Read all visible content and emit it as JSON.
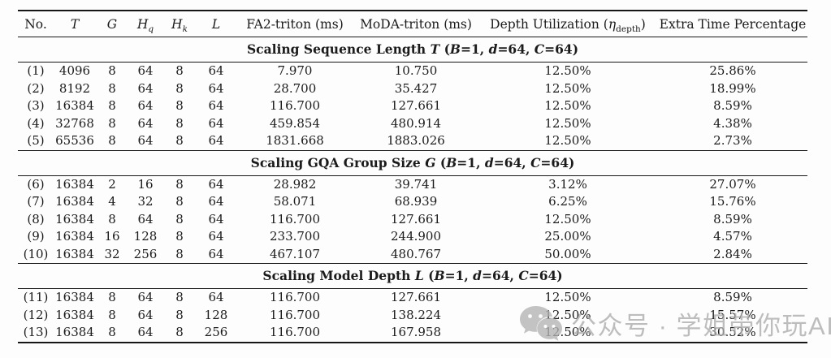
{
  "table": {
    "columns": {
      "no": "No.",
      "t": "T",
      "g": "G",
      "hq_base": "H",
      "hq_sub": "q",
      "hk_base": "H",
      "hk_sub": "k",
      "l": "L",
      "fa2": "FA2-triton (ms)",
      "moda": "MoDA-triton (ms)",
      "depth_prefix": "Depth Utilization (",
      "depth_eta": "η",
      "depth_sub": "depth",
      "depth_close": ")",
      "extra": "Extra Time Percentage"
    },
    "sections": [
      {
        "title": {
          "name": "Scaling Sequence Length",
          "variable": "T",
          "setup_parts": [
            [
              "",
              "("
            ],
            [
              "B",
              "=1, "
            ],
            [
              "d",
              "=64, "
            ],
            [
              "C",
              "=64)"
            ]
          ]
        },
        "rows": [
          [
            "(1)",
            "4096",
            "8",
            "64",
            "8",
            "64",
            "7.970",
            "10.750",
            "12.50%",
            "25.86%"
          ],
          [
            "(2)",
            "8192",
            "8",
            "64",
            "8",
            "64",
            "28.700",
            "35.427",
            "12.50%",
            "18.99%"
          ],
          [
            "(3)",
            "16384",
            "8",
            "64",
            "8",
            "64",
            "116.700",
            "127.661",
            "12.50%",
            "8.59%"
          ],
          [
            "(4)",
            "32768",
            "8",
            "64",
            "8",
            "64",
            "459.854",
            "480.914",
            "12.50%",
            "4.38%"
          ],
          [
            "(5)",
            "65536",
            "8",
            "64",
            "8",
            "64",
            "1831.668",
            "1883.026",
            "12.50%",
            "2.73%"
          ]
        ]
      },
      {
        "title": {
          "name": "Scaling GQA Group Size",
          "variable": "G",
          "setup_parts": [
            [
              "",
              "("
            ],
            [
              "B",
              "=1, "
            ],
            [
              "d",
              "=64, "
            ],
            [
              "C",
              "=64)"
            ]
          ]
        },
        "rows": [
          [
            "(6)",
            "16384",
            "2",
            "16",
            "8",
            "64",
            "28.982",
            "39.741",
            "3.12%",
            "27.07%"
          ],
          [
            "(7)",
            "16384",
            "4",
            "32",
            "8",
            "64",
            "58.071",
            "68.939",
            "6.25%",
            "15.76%"
          ],
          [
            "(8)",
            "16384",
            "8",
            "64",
            "8",
            "64",
            "116.700",
            "127.661",
            "12.50%",
            "8.59%"
          ],
          [
            "(9)",
            "16384",
            "16",
            "128",
            "8",
            "64",
            "233.700",
            "244.900",
            "25.00%",
            "4.57%"
          ],
          [
            "(10)",
            "16384",
            "32",
            "256",
            "8",
            "64",
            "467.107",
            "480.767",
            "50.00%",
            "2.84%"
          ]
        ]
      },
      {
        "title": {
          "name": "Scaling Model Depth",
          "variable": "L",
          "setup_parts": [
            [
              "",
              "("
            ],
            [
              "B",
              "=1, "
            ],
            [
              "d",
              "=64, "
            ],
            [
              "C",
              "=64)"
            ]
          ]
        },
        "rows": [
          [
            "(11)",
            "16384",
            "8",
            "64",
            "8",
            "64",
            "116.700",
            "127.661",
            "12.50%",
            "8.59%"
          ],
          [
            "(12)",
            "16384",
            "8",
            "64",
            "8",
            "128",
            "116.700",
            "138.224",
            "12.50%",
            "15.57%"
          ],
          [
            "(13)",
            "16384",
            "8",
            "64",
            "8",
            "256",
            "116.700",
            "167.958",
            "12.50%",
            "30.52%"
          ]
        ]
      }
    ]
  },
  "watermark": {
    "icon": "wechat-icon",
    "text": "公众号 · 学姐带你玩AI"
  },
  "colors": {
    "text": "#1b1b1b",
    "rule": "#161616",
    "watermark": "#acacac",
    "background": "#fdfdfd"
  }
}
